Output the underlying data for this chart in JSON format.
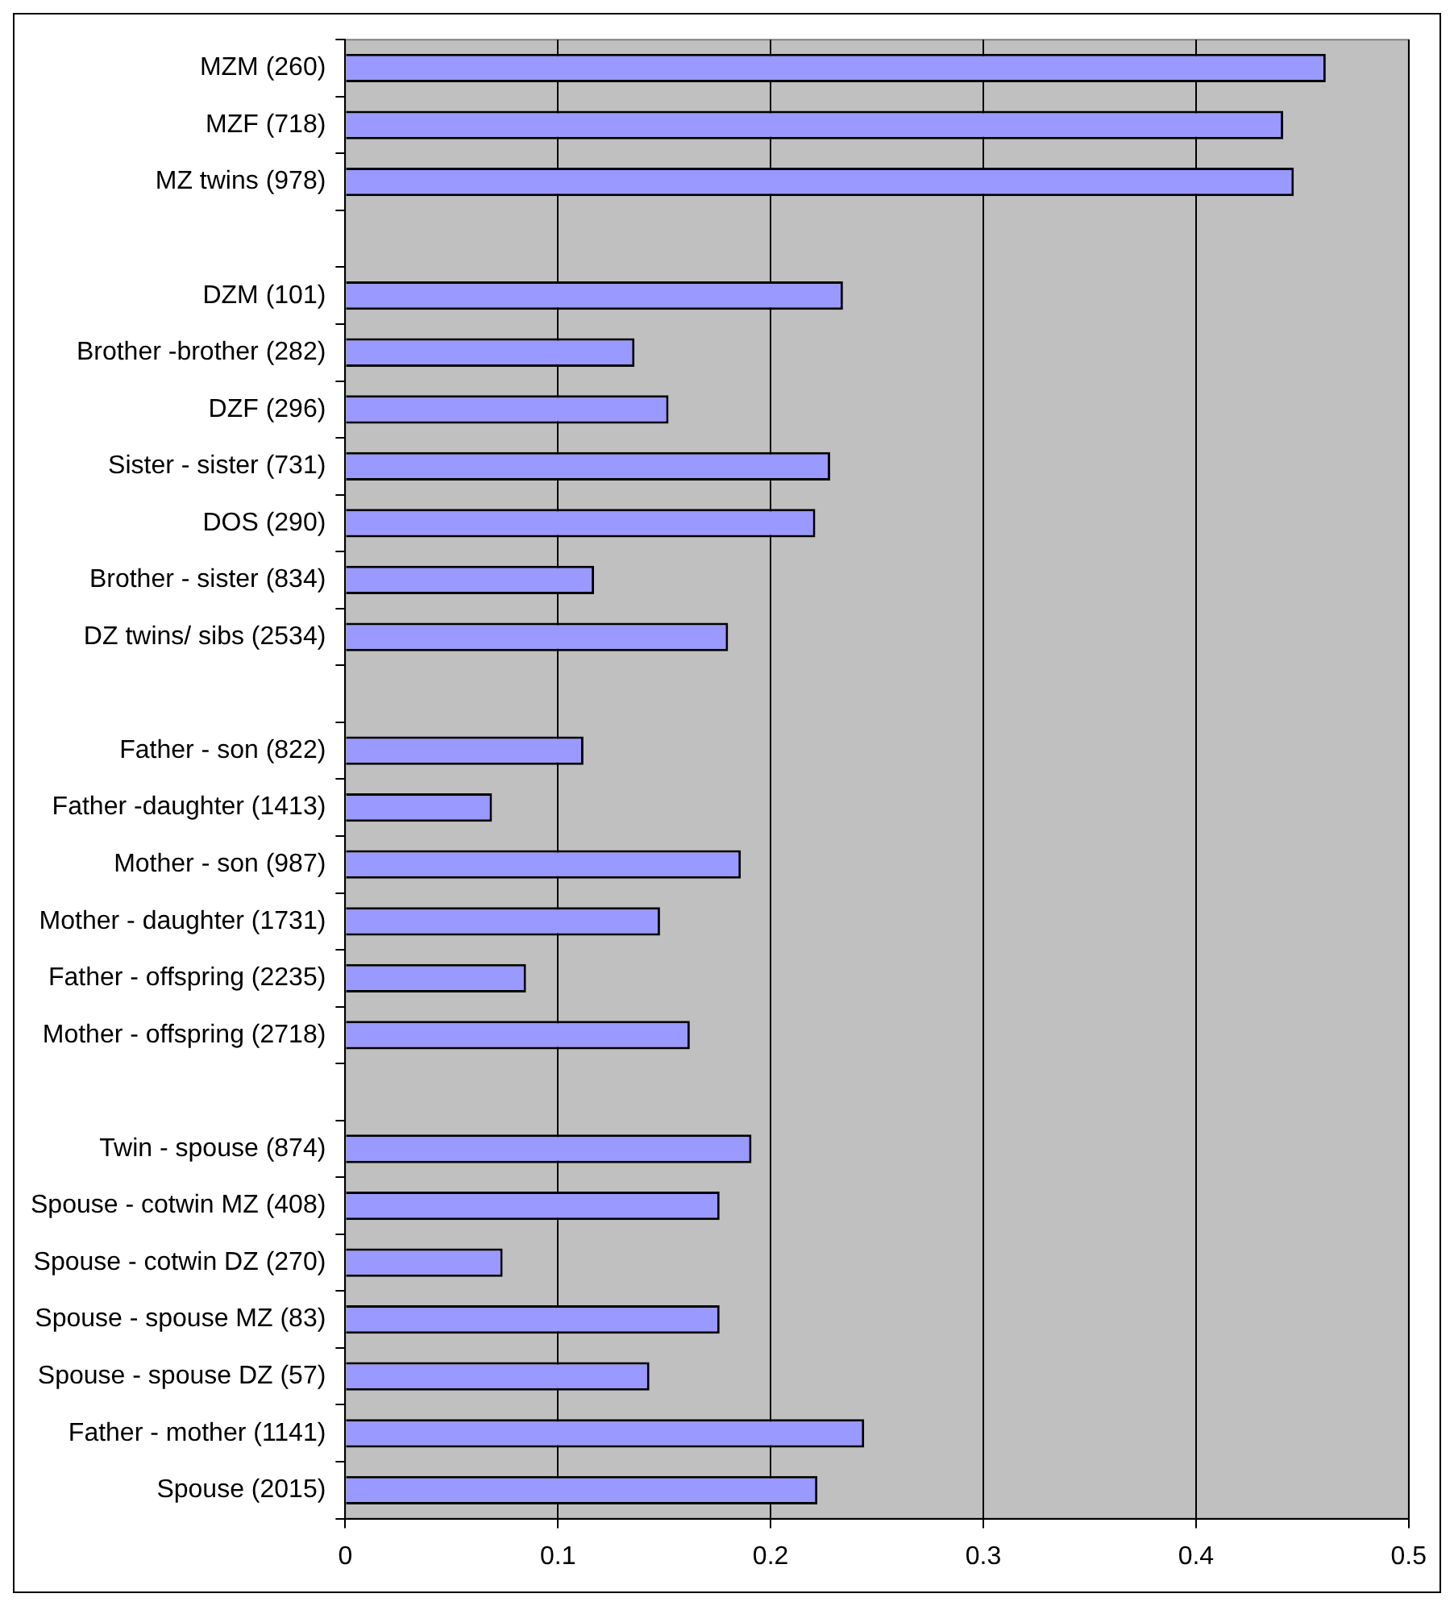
{
  "chart_data": {
    "type": "bar",
    "orientation": "horizontal",
    "categories": [
      "MZM (260)",
      "MZF (718)",
      "MZ twins (978)",
      null,
      "DZM (101)",
      "Brother -brother (282)",
      "DZF (296)",
      "Sister - sister (731)",
      "DOS (290)",
      "Brother - sister (834)",
      "DZ twins/ sibs (2534)",
      null,
      "Father - son (822)",
      "Father -daughter (1413)",
      "Mother - son (987)",
      "Mother - daughter (1731)",
      "Father - offspring (2235)",
      "Mother - offspring (2718)",
      null,
      "Twin - spouse (874)",
      "Spouse - cotwin MZ (408)",
      "Spouse - cotwin DZ (270)",
      "Spouse - spouse MZ (83)",
      "Spouse - spouse DZ (57)",
      "Father - mother (1141)",
      "Spouse (2015)"
    ],
    "values": [
      0.461,
      0.441,
      0.446,
      null,
      0.234,
      0.136,
      0.152,
      0.228,
      0.221,
      0.117,
      0.18,
      null,
      0.112,
      0.069,
      0.186,
      0.148,
      0.085,
      0.162,
      null,
      0.191,
      0.176,
      0.074,
      0.176,
      0.143,
      0.244,
      0.222
    ],
    "color": "#9999ff",
    "xlim": [
      0,
      0.5
    ],
    "xticks": [
      0,
      0.1,
      0.2,
      0.3,
      0.4,
      0.5
    ],
    "grid": "x",
    "legend": false
  }
}
